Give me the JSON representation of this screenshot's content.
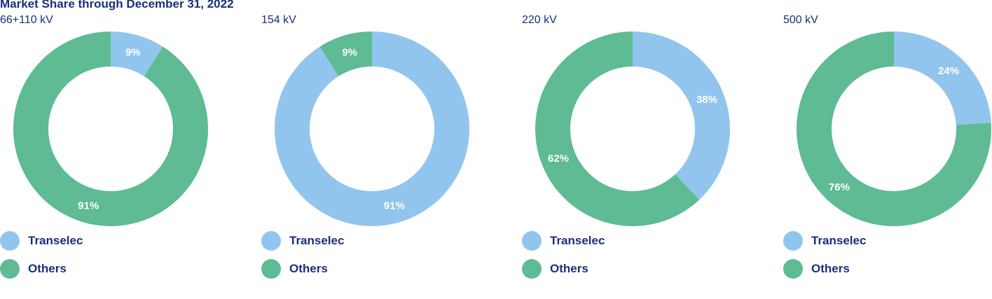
{
  "title": "Market Share through December 31, 2022",
  "colors": {
    "transelec": "#92c5ee",
    "others": "#5ebb93"
  },
  "chart_data": [
    {
      "type": "pie",
      "subtitle": "66+110 kV",
      "slices": [
        {
          "name": "Transelec",
          "value": 9,
          "label": "9%"
        },
        {
          "name": "Others",
          "value": 91,
          "label": "91%"
        }
      ],
      "legend": [
        "Transelec",
        "Others"
      ],
      "legend_position": "bottom"
    },
    {
      "type": "pie",
      "subtitle": "154 kV",
      "slices": [
        {
          "name": "Transelec",
          "value": 91,
          "label": "91%"
        },
        {
          "name": "Others",
          "value": 9,
          "label": "9%"
        }
      ],
      "legend": [
        "Transelec",
        "Others"
      ],
      "legend_position": "bottom"
    },
    {
      "type": "pie",
      "subtitle": "220 kV",
      "slices": [
        {
          "name": "Transelec",
          "value": 38,
          "label": "38%"
        },
        {
          "name": "Others",
          "value": 62,
          "label": "62%"
        }
      ],
      "legend": [
        "Transelec",
        "Others"
      ],
      "legend_position": "bottom"
    },
    {
      "type": "pie",
      "subtitle": "500 kV",
      "slices": [
        {
          "name": "Transelec",
          "value": 24,
          "label": "24%"
        },
        {
          "name": "Others",
          "value": 76,
          "label": "76%"
        }
      ],
      "legend": [
        "Transelec",
        "Others"
      ],
      "legend_position": "bottom"
    }
  ]
}
